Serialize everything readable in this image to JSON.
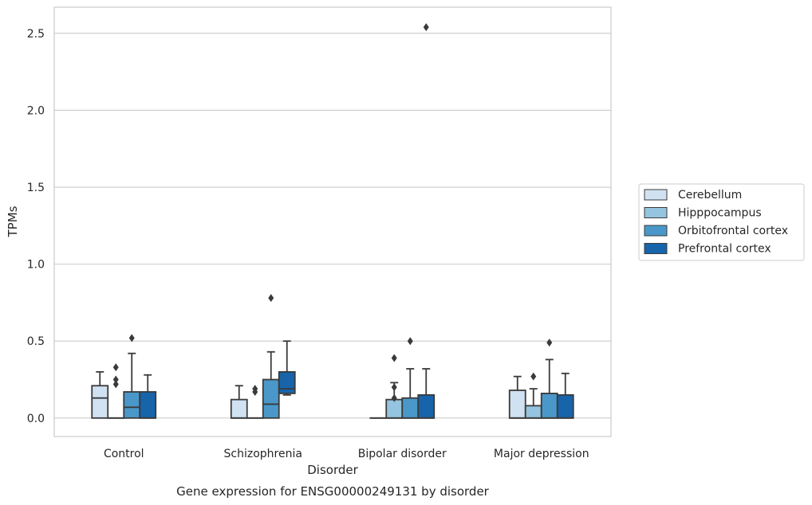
{
  "chart_data": {
    "type": "box",
    "title": "Gene expression for ENSG00000249131 by disorder",
    "xlabel": "Disorder",
    "ylabel": "TPMs",
    "ylim": [
      -0.12,
      2.67
    ],
    "yticks": [
      0.0,
      0.5,
      1.0,
      1.5,
      2.0,
      2.5
    ],
    "ytick_labels": [
      "0.0",
      "0.5",
      "1.0",
      "1.5",
      "2.0",
      "2.5"
    ],
    "grid": "horizontal",
    "legend_position": "right",
    "categories": [
      "Control",
      "Schizophrenia",
      "Bipolar disorder",
      "Major depression"
    ],
    "series": [
      {
        "name": "Cerebellum",
        "color": "#d0e1f2",
        "boxes": [
          {
            "q1": 0.0,
            "median": 0.13,
            "q3": 0.21,
            "whisker_low": 0.0,
            "whisker_high": 0.3,
            "outliers": []
          },
          {
            "q1": 0.0,
            "median": 0.0,
            "q3": 0.12,
            "whisker_low": 0.0,
            "whisker_high": 0.21,
            "outliers": []
          },
          {
            "q1": 0.0,
            "median": 0.0,
            "q3": 0.0,
            "whisker_low": 0.0,
            "whisker_high": 0.0,
            "outliers": []
          },
          {
            "q1": 0.0,
            "median": 0.0,
            "q3": 0.18,
            "whisker_low": 0.0,
            "whisker_high": 0.27,
            "outliers": []
          }
        ]
      },
      {
        "name": "Hipppocampus",
        "color": "#94c4df",
        "boxes": [
          {
            "q1": 0.0,
            "median": 0.0,
            "q3": 0.0,
            "whisker_low": 0.0,
            "whisker_high": 0.0,
            "outliers": [
              0.22,
              0.25,
              0.33
            ]
          },
          {
            "q1": 0.0,
            "median": 0.0,
            "q3": 0.0,
            "whisker_low": 0.0,
            "whisker_high": 0.0,
            "outliers": [
              0.17,
              0.19
            ]
          },
          {
            "q1": 0.0,
            "median": 0.0,
            "q3": 0.12,
            "whisker_low": 0.0,
            "whisker_high": 0.23,
            "outliers": [
              0.13,
              0.2,
              0.39
            ]
          },
          {
            "q1": 0.0,
            "median": 0.0,
            "q3": 0.08,
            "whisker_low": 0.0,
            "whisker_high": 0.19,
            "outliers": [
              0.27
            ]
          }
        ]
      },
      {
        "name": "Orbitofrontal cortex",
        "color": "#4a98c9",
        "boxes": [
          {
            "q1": 0.0,
            "median": 0.07,
            "q3": 0.17,
            "whisker_low": 0.0,
            "whisker_high": 0.42,
            "outliers": [
              0.52
            ]
          },
          {
            "q1": 0.0,
            "median": 0.09,
            "q3": 0.25,
            "whisker_low": 0.0,
            "whisker_high": 0.43,
            "outliers": [
              0.78
            ]
          },
          {
            "q1": 0.0,
            "median": 0.0,
            "q3": 0.13,
            "whisker_low": 0.0,
            "whisker_high": 0.32,
            "outliers": [
              0.5
            ]
          },
          {
            "q1": 0.0,
            "median": 0.0,
            "q3": 0.16,
            "whisker_low": 0.0,
            "whisker_high": 0.38,
            "outliers": [
              0.49
            ]
          }
        ]
      },
      {
        "name": "Prefrontal cortex",
        "color": "#1764ab",
        "boxes": [
          {
            "q1": 0.0,
            "median": 0.0,
            "q3": 0.17,
            "whisker_low": 0.0,
            "whisker_high": 0.28,
            "outliers": []
          },
          {
            "q1": 0.16,
            "median": 0.19,
            "q3": 0.3,
            "whisker_low": 0.15,
            "whisker_high": 0.5,
            "outliers": []
          },
          {
            "q1": 0.0,
            "median": 0.0,
            "q3": 0.15,
            "whisker_low": 0.0,
            "whisker_high": 0.32,
            "outliers": [
              2.54
            ]
          },
          {
            "q1": 0.0,
            "median": 0.0,
            "q3": 0.15,
            "whisker_low": 0.0,
            "whisker_high": 0.29,
            "outliers": []
          }
        ]
      }
    ]
  }
}
